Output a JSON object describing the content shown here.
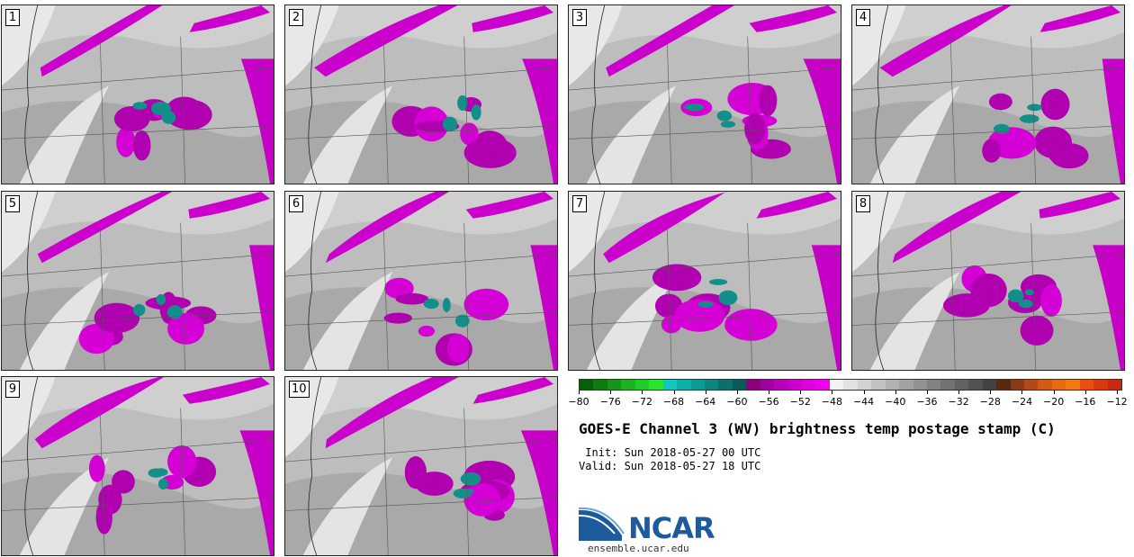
{
  "panels": [
    {
      "label": "1"
    },
    {
      "label": "2"
    },
    {
      "label": "3"
    },
    {
      "label": "4"
    },
    {
      "label": "5"
    },
    {
      "label": "6"
    },
    {
      "label": "7"
    },
    {
      "label": "8"
    },
    {
      "label": "9"
    },
    {
      "label": "10"
    }
  ],
  "colorbar": {
    "tick_labels": [
      "−80",
      "−76",
      "−72",
      "−68",
      "−64",
      "−60",
      "−56",
      "−52",
      "−48",
      "−44",
      "−40",
      "−36",
      "−32",
      "−28",
      "−24",
      "−20",
      "−16",
      "−12"
    ],
    "colors": [
      "#0a5f0a",
      "#0f7a0f",
      "#16951a",
      "#1cb222",
      "#22cc28",
      "#28e62e",
      "#10c8c0",
      "#10b0aa",
      "#0f9a95",
      "#0d8580",
      "#0b706c",
      "#085c58",
      "#8a007a",
      "#a000a0",
      "#b800b8",
      "#cc00cc",
      "#dd00dd",
      "#ee00ee",
      "#f2f2f2",
      "#e2e2e2",
      "#d2d2d2",
      "#c2c2c2",
      "#b2b2b2",
      "#a2a2a2",
      "#929292",
      "#828282",
      "#727272",
      "#626262",
      "#525252",
      "#424242",
      "#5a2a10",
      "#8a3a14",
      "#b24a18",
      "#d25a14",
      "#e86a10",
      "#f07a10",
      "#e85010",
      "#d83a10",
      "#c82a10"
    ]
  },
  "title": "GOES-E Channel 3 (WV) brightness temp postage stamp (C)",
  "init": " Init: Sun 2018-05-27 00 UTC",
  "valid": "Valid: Sun 2018-05-27 18 UTC",
  "logo": {
    "name": "NCAR",
    "url": "ensemble.ucar.edu"
  }
}
